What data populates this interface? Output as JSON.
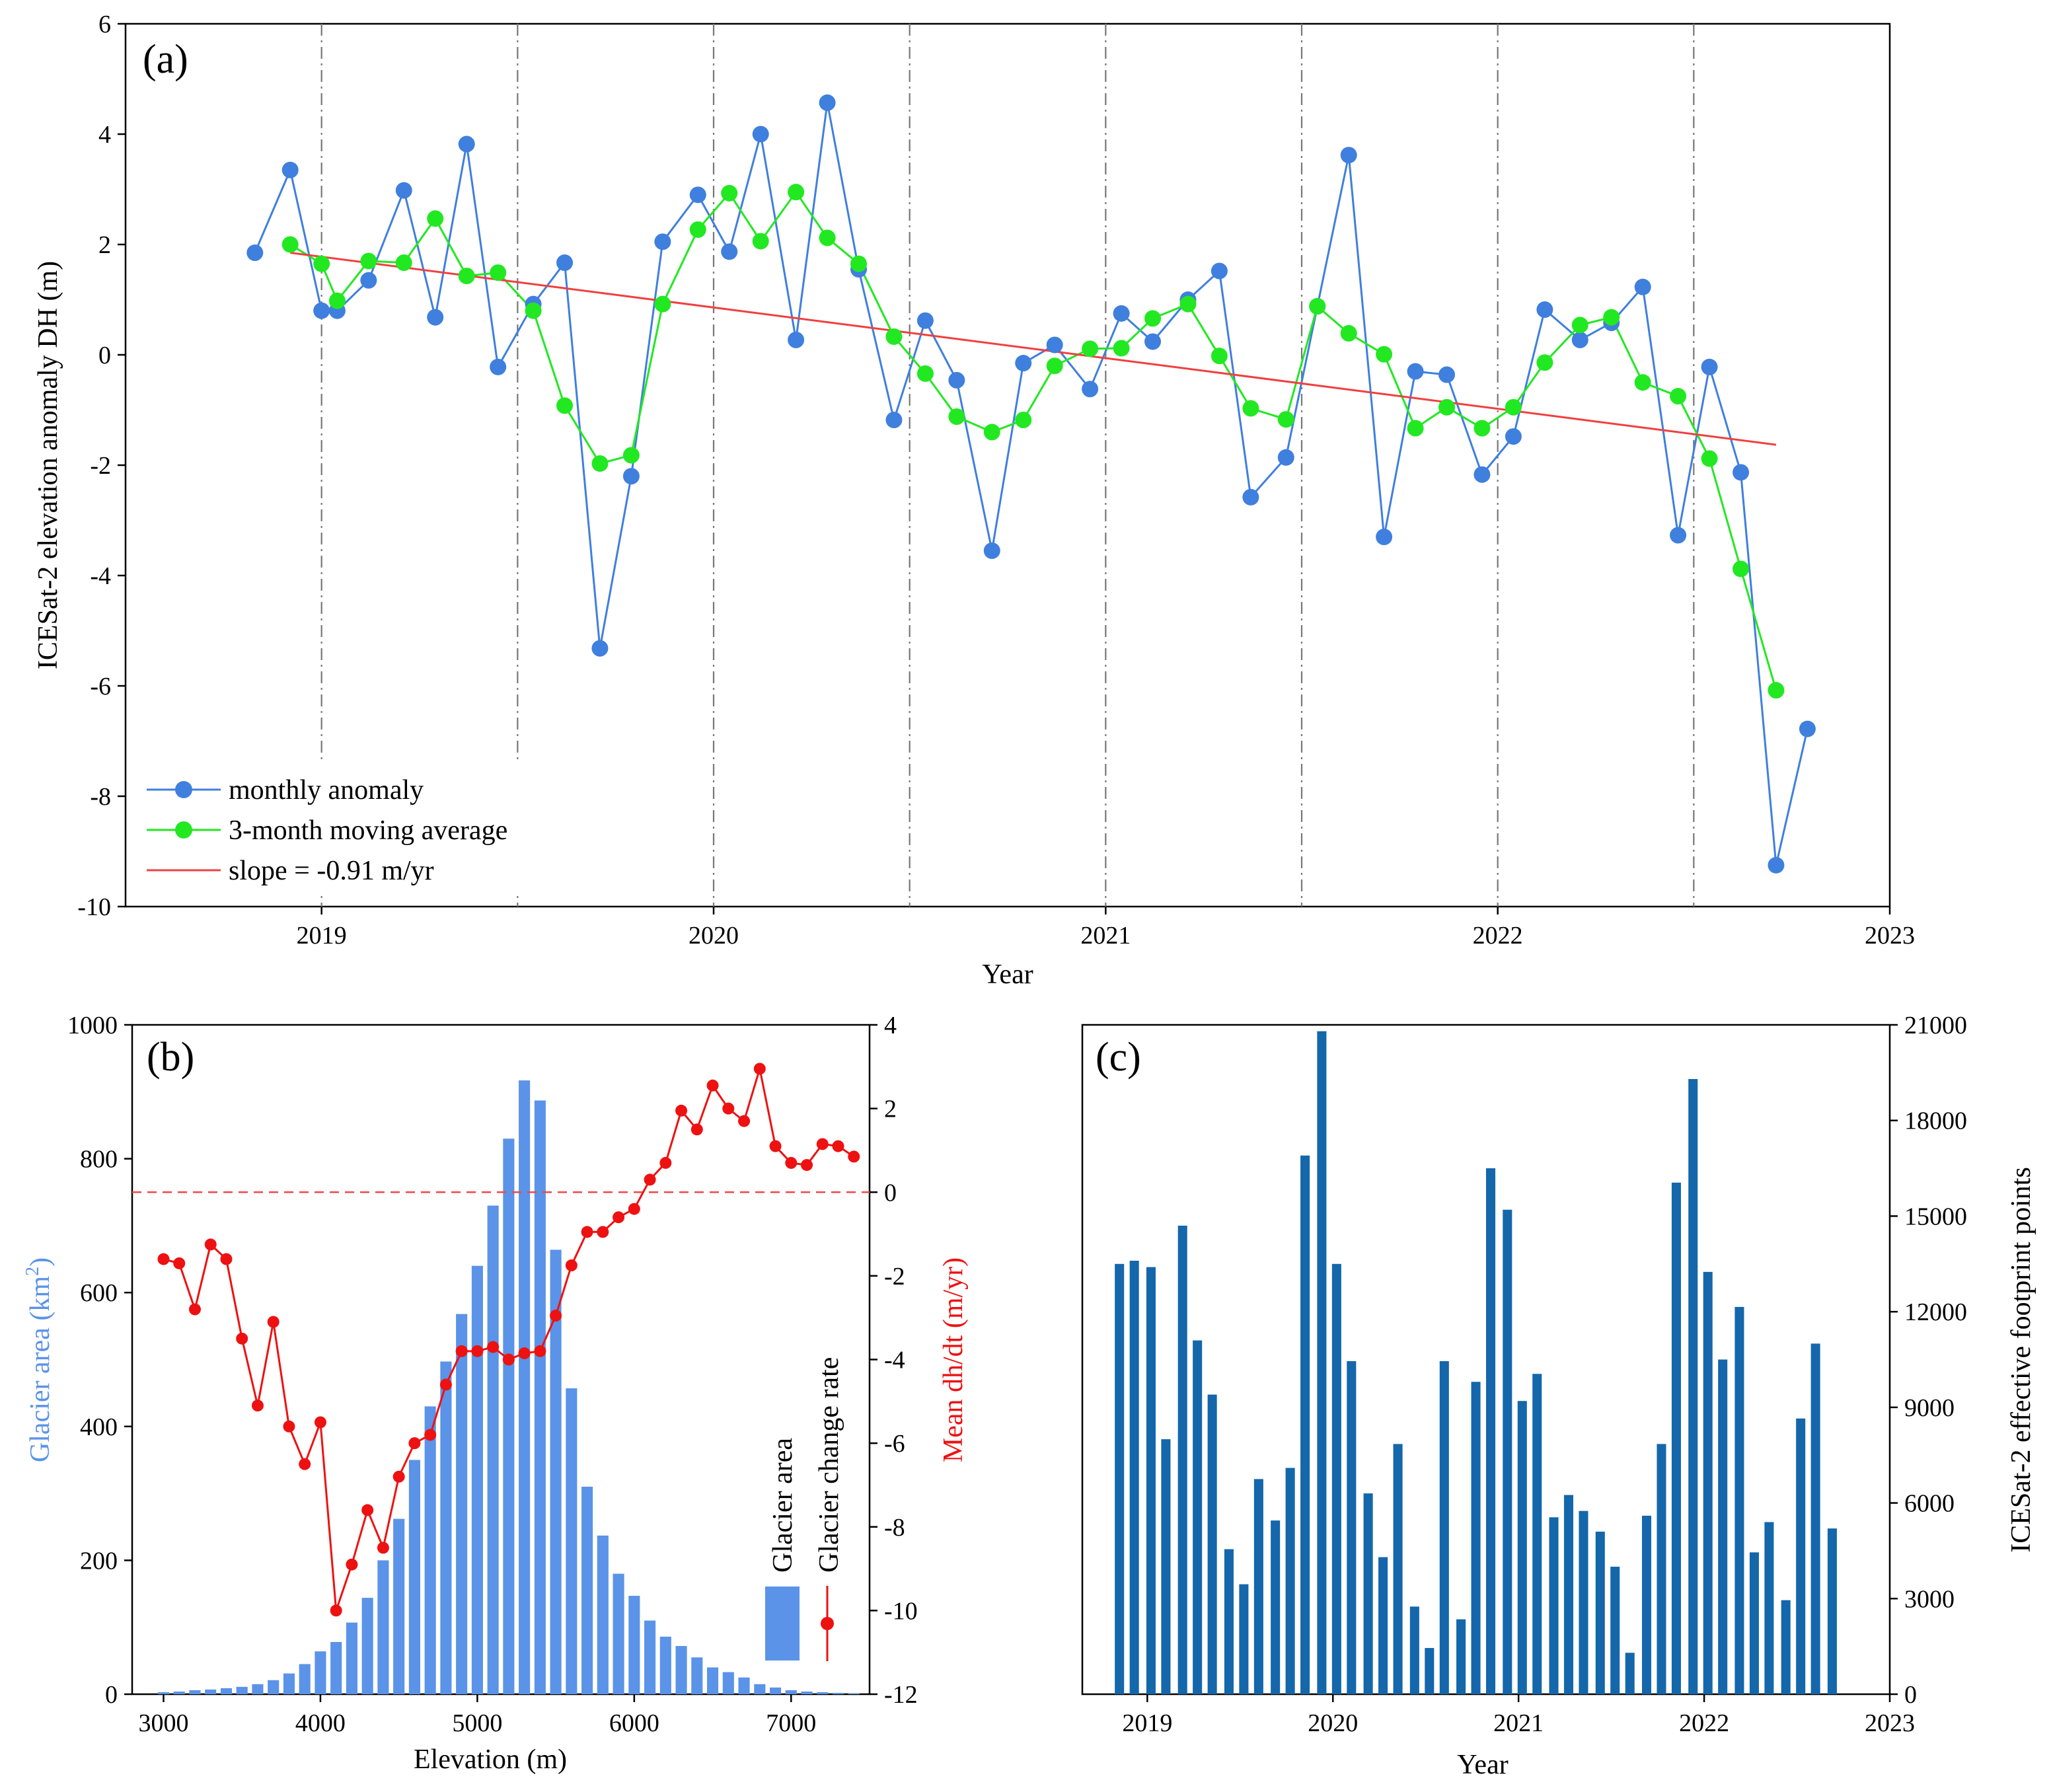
{
  "chart_data": [
    {
      "panel": "(a)",
      "type": "line",
      "xlabel": "Year",
      "ylabel": "ICESat-2 elevation anomaly DH (m)",
      "xlim": [
        2018.5,
        2023.0
      ],
      "ylim": [
        -10,
        6
      ],
      "xticks": [
        2019,
        2020,
        2021,
        2022,
        2023
      ],
      "yticks": [
        -10,
        -8,
        -6,
        -4,
        -2,
        0,
        2,
        4,
        6
      ],
      "vlines": [
        2019.0,
        2019.5,
        2020.0,
        2020.5,
        2021.0,
        2021.5,
        2022.0,
        2022.5
      ],
      "series": [
        {
          "name": "monthly anomaly",
          "color": "#3f7fde",
          "x": [
            2018.83,
            2018.92,
            2019.0,
            2019.04,
            2019.12,
            2019.21,
            2019.29,
            2019.37,
            2019.45,
            2019.54,
            2019.62,
            2019.71,
            2019.79,
            2019.87,
            2019.96,
            2020.04,
            2020.12,
            2020.21,
            2020.29,
            2020.37,
            2020.46,
            2020.54,
            2020.62,
            2020.71,
            2020.79,
            2020.87,
            2020.96,
            2021.04,
            2021.12,
            2021.21,
            2021.29,
            2021.37,
            2021.46,
            2021.54,
            2021.62,
            2021.71,
            2021.79,
            2021.87,
            2021.96,
            2022.04,
            2022.12,
            2022.21,
            2022.29,
            2022.37,
            2022.46,
            2022.54,
            2022.62,
            2022.71,
            2022.79
          ],
          "values": [
            1.85,
            3.35,
            0.8,
            0.8,
            1.35,
            2.98,
            0.68,
            3.82,
            -0.22,
            0.92,
            1.67,
            -5.32,
            -2.2,
            2.05,
            2.9,
            1.87,
            4.0,
            0.27,
            4.57,
            1.55,
            -1.18,
            0.62,
            -0.46,
            -3.55,
            -0.15,
            0.18,
            -0.62,
            0.75,
            0.24,
            1.0,
            1.52,
            -2.58,
            -1.86,
            0.88,
            3.62,
            -3.3,
            -0.3,
            -0.36,
            -2.17,
            -1.48,
            0.82,
            0.27,
            0.58,
            1.23,
            -3.27,
            -0.22,
            -2.13,
            -9.25,
            -6.78
          ]
        },
        {
          "name": "3-month moving average",
          "color": "#22e822",
          "x": [
            2018.92,
            2019.0,
            2019.04,
            2019.12,
            2019.21,
            2019.29,
            2019.37,
            2019.45,
            2019.54,
            2019.62,
            2019.71,
            2019.79,
            2019.87,
            2019.96,
            2020.04,
            2020.12,
            2020.21,
            2020.29,
            2020.37,
            2020.46,
            2020.54,
            2020.62,
            2020.71,
            2020.79,
            2020.87,
            2020.96,
            2021.04,
            2021.12,
            2021.21,
            2021.29,
            2021.37,
            2021.46,
            2021.54,
            2021.62,
            2021.71,
            2021.79,
            2021.87,
            2021.96,
            2022.04,
            2022.12,
            2022.21,
            2022.29,
            2022.37,
            2022.46,
            2022.54,
            2022.62,
            2022.71
          ],
          "values": [
            2.0,
            1.65,
            0.98,
            1.7,
            1.67,
            2.47,
            1.43,
            1.49,
            0.8,
            -0.92,
            -1.97,
            -1.82,
            0.92,
            2.27,
            2.93,
            2.06,
            2.95,
            2.12,
            1.65,
            0.33,
            -0.34,
            -1.12,
            -1.4,
            -1.18,
            -0.2,
            0.11,
            0.12,
            0.66,
            0.92,
            -0.02,
            -0.97,
            -1.17,
            0.88,
            0.39,
            0.01,
            -1.33,
            -0.95,
            -1.33,
            -0.95,
            -0.14,
            0.54,
            0.68,
            -0.5,
            -0.75,
            -1.88,
            -3.88,
            -6.08
          ]
        },
        {
          "name": "slope = -0.91 m/yr",
          "color": "#f04040",
          "x": [
            2018.92,
            2022.71
          ],
          "values": [
            1.85,
            -1.63
          ]
        }
      ]
    },
    {
      "panel": "(b)",
      "type": "bar+line",
      "xlabel": "Elevation (m)",
      "ylabel_left": "Glacier area (km²)",
      "ylabel_left_main": "Glacier area (km",
      "ylabel_left_sup": "2",
      "ylabel_left_end": ")",
      "ylabel_right": "Mean dh/dt (m/yr)",
      "xlim": [
        2800,
        7500
      ],
      "xticks": [
        3000,
        4000,
        5000,
        6000,
        7000
      ],
      "ylim_left": [
        0,
        1000
      ],
      "yticks_left": [
        0,
        200,
        400,
        600,
        800,
        1000
      ],
      "ylim_right": [
        -12,
        4
      ],
      "yticks_right": [
        -12,
        -10,
        -8,
        -6,
        -4,
        -2,
        0,
        2,
        4
      ],
      "zero_line": 0,
      "legend": [
        "Glacier area",
        "Glacier change rate"
      ],
      "series": [
        {
          "name": "Glacier area",
          "axis": "left",
          "color": "#5b93e8",
          "x": [
            3000,
            3100,
            3200,
            3300,
            3400,
            3500,
            3600,
            3700,
            3800,
            3900,
            4000,
            4100,
            4200,
            4300,
            4400,
            4500,
            4600,
            4700,
            4800,
            4900,
            5000,
            5100,
            5200,
            5300,
            5400,
            5500,
            5600,
            5700,
            5800,
            5900,
            6000,
            6100,
            6200,
            6300,
            6400,
            6500,
            6600,
            6700,
            6800,
            6900,
            7000,
            7100,
            7200,
            7300,
            7400
          ],
          "values": [
            3,
            4,
            6,
            7,
            9,
            11,
            15,
            21,
            31,
            45,
            64,
            78,
            107,
            144,
            200,
            262,
            350,
            430,
            497,
            568,
            640,
            730,
            830,
            917,
            887,
            664,
            457,
            310,
            237,
            180,
            147,
            110,
            86,
            72,
            55,
            40,
            33,
            25,
            15,
            10,
            6,
            4,
            3,
            2,
            1
          ]
        },
        {
          "name": "Glacier change rate",
          "axis": "right",
          "color": "#ee1111",
          "x": [
            3000,
            3100,
            3200,
            3300,
            3400,
            3500,
            3600,
            3700,
            3800,
            3900,
            4000,
            4100,
            4200,
            4300,
            4400,
            4500,
            4600,
            4700,
            4800,
            4900,
            5000,
            5100,
            5200,
            5300,
            5400,
            5500,
            5600,
            5700,
            5800,
            5900,
            6000,
            6100,
            6200,
            6300,
            6400,
            6500,
            6600,
            6700,
            6800,
            6900,
            7000,
            7100,
            7200,
            7300,
            7400
          ],
          "values": [
            -1.6,
            -1.7,
            -2.8,
            -1.25,
            -1.6,
            -3.5,
            -5.1,
            -3.1,
            -5.6,
            -6.5,
            -5.5,
            -10.0,
            -8.9,
            -7.6,
            -8.5,
            -6.8,
            -6.0,
            -5.8,
            -4.6,
            -3.8,
            -3.8,
            -3.7,
            -4.0,
            -3.85,
            -3.8,
            -2.95,
            -1.75,
            -0.95,
            -0.95,
            -0.6,
            -0.4,
            0.3,
            0.7,
            1.95,
            1.5,
            2.55,
            2.0,
            1.7,
            2.95,
            1.1,
            0.7,
            0.65,
            1.15,
            1.1,
            0.85
          ]
        }
      ]
    },
    {
      "panel": "(c)",
      "type": "bar",
      "xlabel": "Year",
      "ylabel": "ICESat-2 effective footprint points",
      "y_axis_side": "right",
      "xlim": [
        2018.65,
        2023.0
      ],
      "xticks": [
        2019,
        2020,
        2021,
        2022,
        2023
      ],
      "ylim": [
        0,
        21000
      ],
      "yticks": [
        0,
        3000,
        6000,
        9000,
        12000,
        15000,
        18000,
        21000
      ],
      "series": [
        {
          "name": "footprint points",
          "color": "#1467aa",
          "x": [
            2018.85,
            2018.93,
            2019.02,
            2019.1,
            2019.19,
            2019.27,
            2019.35,
            2019.44,
            2019.52,
            2019.6,
            2019.69,
            2019.77,
            2019.85,
            2019.94,
            2020.02,
            2020.1,
            2020.19,
            2020.27,
            2020.35,
            2020.44,
            2020.52,
            2020.6,
            2020.69,
            2020.77,
            2020.85,
            2020.94,
            2021.02,
            2021.1,
            2021.19,
            2021.27,
            2021.35,
            2021.44,
            2021.52,
            2021.6,
            2021.69,
            2021.77,
            2021.85,
            2021.94,
            2022.02,
            2022.1,
            2022.19,
            2022.27,
            2022.35,
            2022.44,
            2022.52,
            2022.6,
            2022.69
          ],
          "values": [
            13500,
            13600,
            13400,
            8000,
            14700,
            11100,
            9400,
            4550,
            3450,
            6750,
            5450,
            7100,
            16900,
            20800,
            13500,
            10450,
            6300,
            4300,
            7850,
            2750,
            1450,
            10450,
            2350,
            9800,
            16500,
            15200,
            9200,
            10050,
            5550,
            6250,
            5750,
            5100,
            4000,
            1300,
            5600,
            7850,
            16050,
            19300,
            13250,
            10500,
            12150,
            4450,
            5400,
            2950,
            8650,
            11000,
            5200
          ]
        }
      ]
    }
  ]
}
